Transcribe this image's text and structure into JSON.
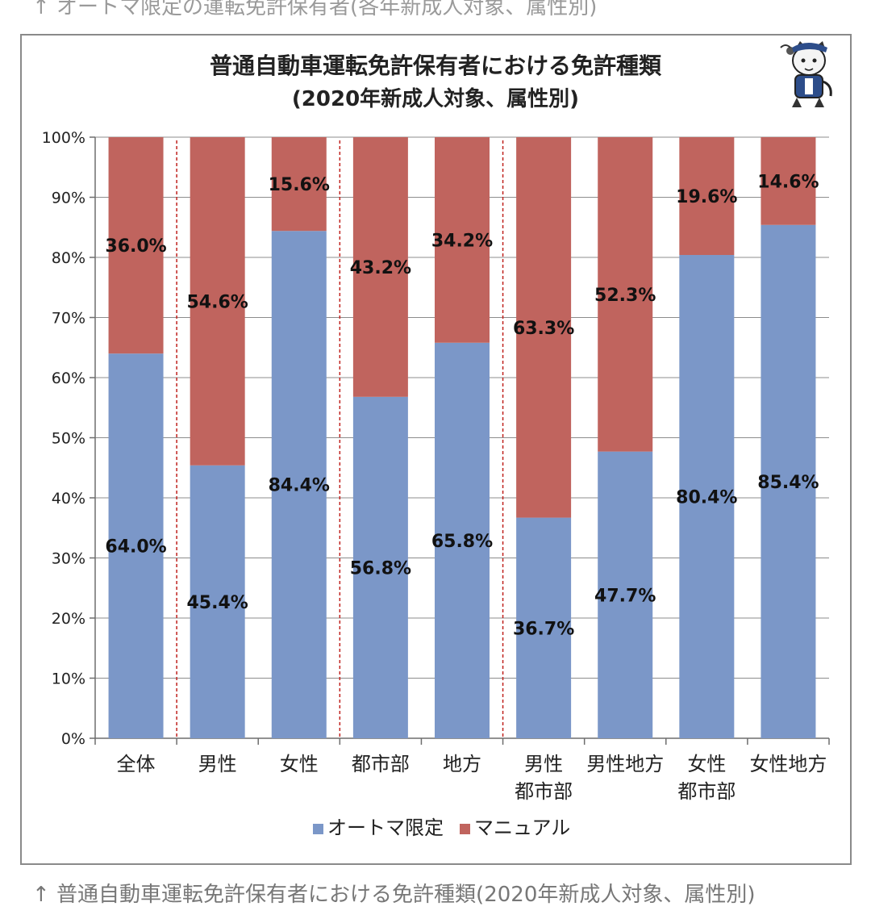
{
  "page": {
    "top_caption": "↑ オートマ限定の運転免許保有者(各年新成人対象、属性別)",
    "bottom_caption": "↑ 普通自動車運転免許保有者における免許種類(2020年新成人対象、属性別)"
  },
  "chart_data": {
    "type": "bar",
    "stacked": true,
    "title": "普通自動車運転免許保有者における免許種類",
    "subtitle": "(2020年新成人対象、属性別)",
    "categories": [
      "全体",
      "男性",
      "女性",
      "都市部",
      "地方",
      "男性\n都市部",
      "男性地方",
      "女性\n都市部",
      "女性地方"
    ],
    "series": [
      {
        "name": "オートマ限定",
        "values": [
          64.0,
          45.4,
          84.4,
          56.8,
          65.8,
          36.7,
          47.7,
          80.4,
          85.4
        ],
        "color": "#7b97c8"
      },
      {
        "name": "マニュアル",
        "values": [
          36.0,
          54.6,
          15.6,
          43.2,
          34.2,
          63.3,
          52.3,
          19.6,
          14.6
        ],
        "color": "#c0645e"
      }
    ],
    "ylim": [
      0,
      100
    ],
    "yticks": [
      "0%",
      "10%",
      "20%",
      "30%",
      "40%",
      "50%",
      "60%",
      "70%",
      "80%",
      "90%",
      "100%"
    ],
    "grid": true,
    "legend": "bottom",
    "separators_after_categories": [
      0,
      2,
      4
    ]
  }
}
